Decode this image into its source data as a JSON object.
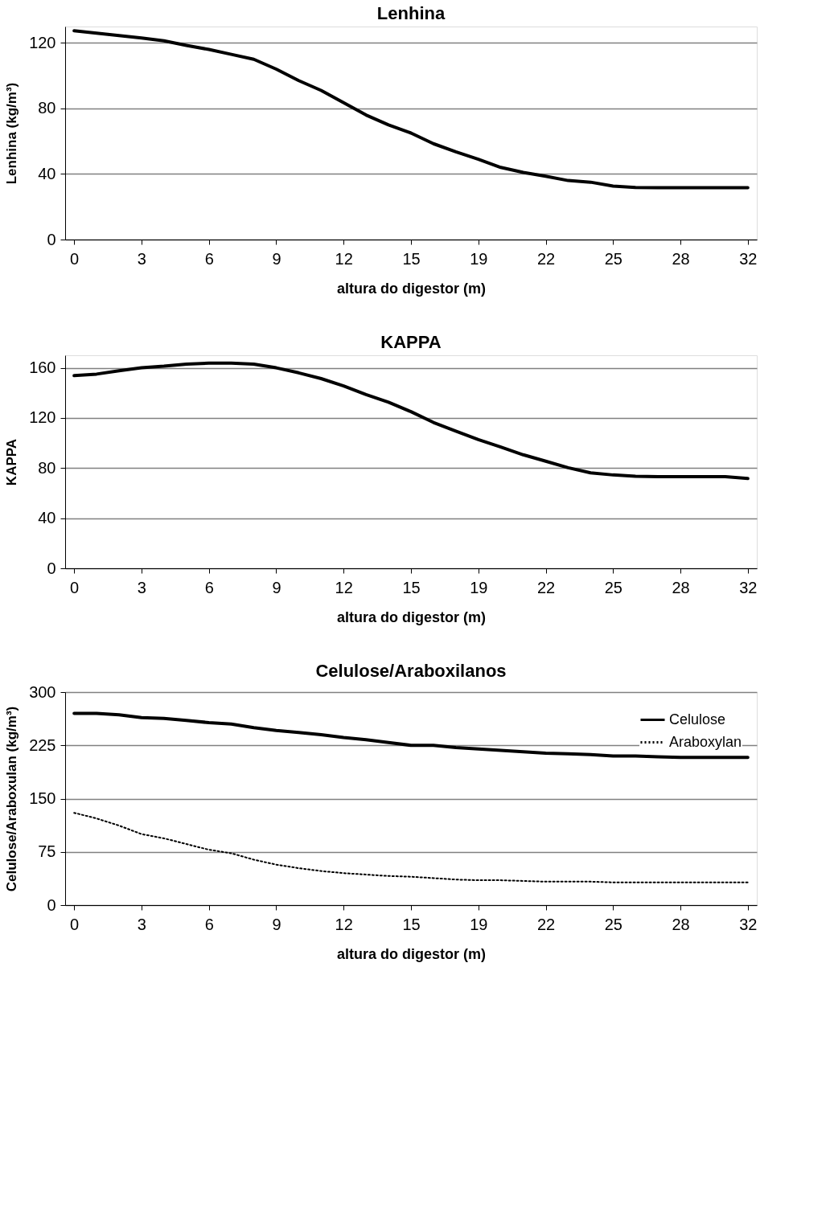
{
  "chart_data": [
    {
      "type": "line",
      "title": "Lenhina",
      "xlabel": "altura do digestor (m)",
      "ylabel": "Lenhina (kg/m³)",
      "categories": [
        "0",
        null,
        null,
        "3",
        null,
        null,
        "6",
        null,
        null,
        "9",
        null,
        null,
        "12",
        null,
        null,
        "15",
        null,
        null,
        "19",
        null,
        null,
        "22",
        null,
        null,
        "25",
        null,
        null,
        "28",
        null,
        null,
        "32"
      ],
      "series": [
        {
          "color": "#000000",
          "line_style": "solid",
          "values": [
            127.4,
            126,
            124.5,
            123,
            121.3,
            118.5,
            116,
            113,
            110,
            104,
            97,
            91,
            83.5,
            76,
            70,
            65,
            58.5,
            53.5,
            49,
            44,
            41,
            38.6,
            36,
            35,
            32.6,
            31.8,
            31.6,
            31.6,
            31.6,
            31.6,
            31.6
          ]
        }
      ],
      "ylim": [
        0,
        130
      ],
      "yticks": [
        0,
        40,
        80,
        120
      ],
      "grid": "y",
      "legend": false
    },
    {
      "type": "line",
      "title": "KAPPA",
      "xlabel": "altura do digestor (m)",
      "ylabel": "KAPPA",
      "categories": [
        "0",
        null,
        null,
        "3",
        null,
        null,
        "6",
        null,
        null,
        "9",
        null,
        null,
        "12",
        null,
        null,
        "15",
        null,
        null,
        "19",
        null,
        null,
        "22",
        null,
        null,
        "25",
        null,
        null,
        "28",
        null,
        null,
        "32"
      ],
      "series": [
        {
          "color": "#000000",
          "line_style": "solid",
          "values": [
            153.8,
            155,
            157.6,
            160,
            161.3,
            163,
            163.7,
            163.7,
            163,
            160,
            156,
            151.4,
            145.6,
            138.7,
            132.5,
            125,
            116.4,
            109.5,
            102.7,
            96.8,
            90.6,
            85.5,
            80.3,
            76.2,
            74.5,
            73.5,
            73.1,
            73.1,
            73.1,
            73.1,
            71.7
          ]
        }
      ],
      "ylim": [
        0,
        170
      ],
      "yticks": [
        0,
        40,
        80,
        120,
        160
      ],
      "grid": "y",
      "legend": false
    },
    {
      "type": "line",
      "title": "Celulose/Araboxilanos",
      "xlabel": "altura do digestor (m)",
      "ylabel": "Celulose/Araboxulan  (kg/m³)",
      "categories": [
        "0",
        null,
        null,
        "3",
        null,
        null,
        "6",
        null,
        null,
        "9",
        null,
        null,
        "12",
        null,
        null,
        "15",
        null,
        null,
        "19",
        null,
        null,
        "22",
        null,
        null,
        "25",
        null,
        null,
        "28",
        null,
        null,
        "32"
      ],
      "series": [
        {
          "name": "Celulose",
          "color": "#000000",
          "line_style": "solid",
          "values": [
            270,
            270,
            268,
            264,
            263,
            260,
            257,
            255,
            250,
            246,
            243,
            240,
            236,
            233,
            229,
            225,
            225,
            222,
            220,
            218,
            216,
            214,
            213,
            212,
            210,
            210,
            209,
            208,
            208,
            208,
            208
          ]
        },
        {
          "name": "Araboxylan",
          "color": "#000000",
          "line_style": "dotted",
          "values": [
            130,
            122,
            112,
            100,
            94,
            86,
            78,
            73,
            64,
            57,
            52,
            48,
            45,
            43,
            41,
            40,
            38,
            36,
            35,
            35,
            34,
            33,
            33,
            33,
            32,
            32,
            32,
            32,
            32,
            32,
            32
          ]
        }
      ],
      "ylim": [
        0,
        300
      ],
      "yticks": [
        0,
        75,
        150,
        225,
        300
      ],
      "grid": "y",
      "legend": "top right"
    }
  ]
}
